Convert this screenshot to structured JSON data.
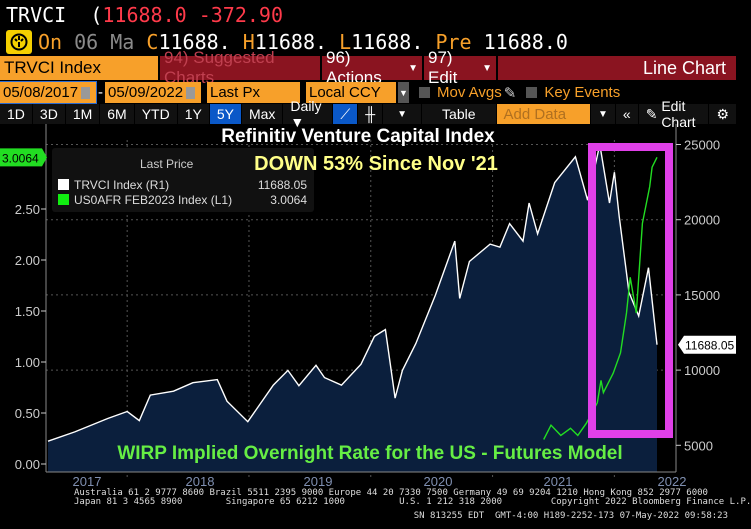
{
  "header": {
    "ticker": "TRVCI",
    "paren": "(",
    "last": "11688.0",
    "change": "-372.90"
  },
  "quote": {
    "on_label": "On",
    "date": "06 Ma",
    "c_label": "C",
    "c_val": "11688.",
    "h_label": "H",
    "h_val": "11688.",
    "l_label": "L",
    "l_val": "11688.",
    "pre_label": "Pre",
    "pre_val": "11688.0"
  },
  "toolbar": {
    "security": "TRVCI Index",
    "suggested": "94) Suggested Charts",
    "actions": "96) Actions",
    "edit": "97) Edit",
    "chart_type": "Line Chart"
  },
  "range": {
    "start": "05/08/2017",
    "dash": "-",
    "end": "05/09/2022",
    "field": "Last Px",
    "currency": "Local CCY",
    "mov_avgs": "Mov Avgs",
    "key_events": "Key Events"
  },
  "periods": [
    "1D",
    "3D",
    "1M",
    "6M",
    "YTD",
    "1Y",
    "5Y",
    "Max"
  ],
  "period_active": "5Y",
  "freq": "Daily ▼",
  "table_label": "Table",
  "add_data_placeholder": "Add Data",
  "edit_chart": "Edit Chart",
  "colors": {
    "trvci": "#ffffff",
    "area": "#0b1f3d",
    "rate": "#22dd22",
    "box": "#e040e8",
    "title": "#ffffff",
    "subtitle": "#ffff88",
    "note": "#66ee44"
  },
  "chart_data": {
    "type": "line",
    "title": "Refinitiv Venture Capital Index",
    "subtitle": "DOWN 53% Since Nov '21",
    "note": "WIRP Implied Overnight Rate for the US - Futures Model",
    "legend": {
      "header": "Last Price",
      "items": [
        {
          "name": "TRVCI Index  (R1)",
          "value": "11688.05"
        },
        {
          "name": "US0AFR FEB2023 Index  (L1)",
          "value": "3.0064"
        }
      ]
    },
    "x_ticks": [
      "2017",
      "2018",
      "2019",
      "2020",
      "2021",
      "2022"
    ],
    "left_axis": {
      "ticks": [
        "0.00",
        "0.50",
        "1.00",
        "1.50",
        "2.00",
        "2.50"
      ],
      "ylim": [
        0,
        3.05
      ],
      "last_tag": "3.0064"
    },
    "right_axis": {
      "ticks": [
        "5000",
        "10000",
        "15000",
        "20000",
        "25000"
      ],
      "ylim": [
        3225,
        25300
      ],
      "last_tag": "11688.05"
    },
    "series": [
      {
        "name": "TRVCI Index",
        "axis": "right",
        "points": [
          [
            2017.35,
            5270
          ],
          [
            2017.57,
            5890
          ],
          [
            2017.84,
            6780
          ],
          [
            2018.0,
            7250
          ],
          [
            2018.1,
            6640
          ],
          [
            2018.19,
            8340
          ],
          [
            2018.38,
            8600
          ],
          [
            2018.54,
            9160
          ],
          [
            2018.74,
            9370
          ],
          [
            2018.82,
            7930
          ],
          [
            2018.99,
            6570
          ],
          [
            2019.2,
            9000
          ],
          [
            2019.32,
            9980
          ],
          [
            2019.41,
            8960
          ],
          [
            2019.55,
            10320
          ],
          [
            2019.62,
            9500
          ],
          [
            2019.76,
            9000
          ],
          [
            2019.92,
            10390
          ],
          [
            2020.03,
            12240
          ],
          [
            2020.12,
            12700
          ],
          [
            2020.2,
            8140
          ],
          [
            2020.26,
            9980
          ],
          [
            2020.37,
            11760
          ],
          [
            2020.53,
            14970
          ],
          [
            2020.69,
            18580
          ],
          [
            2020.73,
            14770
          ],
          [
            2020.81,
            17220
          ],
          [
            2020.98,
            18380
          ],
          [
            2021.06,
            18170
          ],
          [
            2021.14,
            19740
          ],
          [
            2021.25,
            18580
          ],
          [
            2021.3,
            21110
          ],
          [
            2021.37,
            19060
          ],
          [
            2021.51,
            22470
          ],
          [
            2021.68,
            24180
          ],
          [
            2021.78,
            21300
          ],
          [
            2021.88,
            25000
          ],
          [
            2021.96,
            21110
          ],
          [
            2022.0,
            23160
          ],
          [
            2022.04,
            20220
          ],
          [
            2022.12,
            15170
          ],
          [
            2022.2,
            13600
          ],
          [
            2022.28,
            16810
          ],
          [
            2022.33,
            13120
          ],
          [
            2022.35,
            11688
          ]
        ]
      },
      {
        "name": "US0AFR FEB2023 Index",
        "axis": "left",
        "points": [
          [
            2021.42,
            0.24
          ],
          [
            2021.48,
            0.38
          ],
          [
            2021.56,
            0.28
          ],
          [
            2021.64,
            0.35
          ],
          [
            2021.7,
            0.28
          ],
          [
            2021.77,
            0.4
          ],
          [
            2021.86,
            0.6
          ],
          [
            2021.89,
            0.82
          ],
          [
            2021.91,
            0.7
          ],
          [
            2021.99,
            0.89
          ],
          [
            2022.05,
            1.09
          ],
          [
            2022.1,
            1.48
          ],
          [
            2022.13,
            1.83
          ],
          [
            2022.18,
            1.48
          ],
          [
            2022.23,
            2.36
          ],
          [
            2022.29,
            2.72
          ],
          [
            2022.31,
            2.91
          ],
          [
            2022.35,
            3.0064
          ]
        ]
      }
    ],
    "highlight_box": {
      "from": 2021.82,
      "to": 2022.5,
      "ymin": 6000,
      "ymax": 25800
    }
  },
  "footer": {
    "line1": "Australia 61 2 9777 8600 Brazil 5511 2395 9000 Europe 44 20 7330 7500 Germany 49 69 9204 1210 Hong Kong 852 2977 6000",
    "line2": "Japan 81 3 4565 8900        Singapore 65 6212 1000          U.S. 1 212 318 2000         Copyright 2022 Bloomberg Finance L.P.",
    "line3": "SN 813255 EDT  GMT-4:00 H189-2252-173 07-May-2022 09:58:23"
  }
}
